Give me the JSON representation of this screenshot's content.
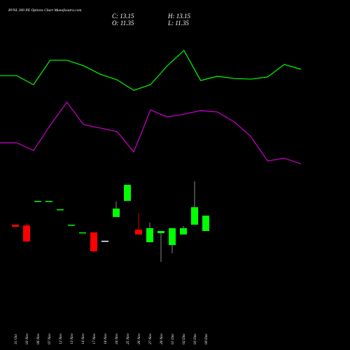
{
  "chart_data": [
    {
      "type": "candlestick",
      "title": "BVNL 300 PE Options Chart Munafasutra.com",
      "ohlc_labels": [
        "C: 13.15",
        "O: 11.35",
        "H: 13.15",
        "L: 11.35"
      ],
      "categories": [
        "31 Oct",
        "03 Nov",
        "06 Nov",
        "07 Nov",
        "12 Nov",
        "13 Nov",
        "14 Nov",
        "17 Nov",
        "18 Nov",
        "24 Nov",
        "25 Nov",
        "26 Nov",
        "27 Nov",
        "28 Nov",
        "01 Dec",
        "02 Dec",
        "03 Dec",
        "09 Dec"
      ],
      "open": [
        12.09,
        12.0,
        14.87,
        14.87,
        13.89,
        12.09,
        11.19,
        11.19,
        10.21,
        12.99,
        14.87,
        11.51,
        10.04,
        11.1,
        9.71,
        10.94,
        12.09,
        11.35
      ],
      "high": [
        12.09,
        12.25,
        14.87,
        14.87,
        13.89,
        12.09,
        11.19,
        11.19,
        10.21,
        14.79,
        16.75,
        13.48,
        12.33,
        11.35,
        11.68,
        11.92,
        17.16,
        13.15
      ],
      "low": [
        11.84,
        10.12,
        14.87,
        14.87,
        13.89,
        12.09,
        11.19,
        8.81,
        10.21,
        12.99,
        14.87,
        10.94,
        10.04,
        7.75,
        8.73,
        10.94,
        12.09,
        11.35
      ],
      "close": [
        11.84,
        10.12,
        14.87,
        14.87,
        13.89,
        12.09,
        11.19,
        8.98,
        10.21,
        13.97,
        16.75,
        10.94,
        11.68,
        11.35,
        11.68,
        11.68,
        14.13,
        13.15
      ],
      "colors": [
        "#ff0000",
        "#ff0000",
        "#00ff00",
        "#00ff00",
        "#00ff00",
        "#00ff00",
        "#00ff00",
        "#ff0000",
        "#ffffff",
        "#00ff00",
        "#00ff00",
        "#ff0000",
        "#00ff00",
        "#00ff00",
        "#00ff00",
        "#00ff00",
        "#00ff00",
        "#00ff00"
      ],
      "ylim": [
        2.35,
        38.35
      ]
    },
    {
      "type": "line",
      "series": [
        {
          "color": "#00ff00",
          "values": [
            29.51,
            29.51,
            28.45,
            31.31,
            31.31,
            30.66,
            29.67,
            29.02,
            27.79,
            28.45,
            30.66,
            32.45,
            28.94,
            29.43,
            29.18,
            29.1,
            29.35,
            30.82,
            30.25
          ]
        },
        {
          "color": "#cc00cc",
          "values": [
            21.66,
            21.66,
            20.76,
            23.7,
            26.4,
            23.78,
            23.38,
            22.97,
            20.59,
            25.5,
            24.68,
            25.01,
            25.42,
            25.26,
            24.11,
            22.39,
            19.53,
            19.86,
            19.2
          ]
        }
      ],
      "ylim": [
        2.35,
        38.35
      ]
    }
  ]
}
